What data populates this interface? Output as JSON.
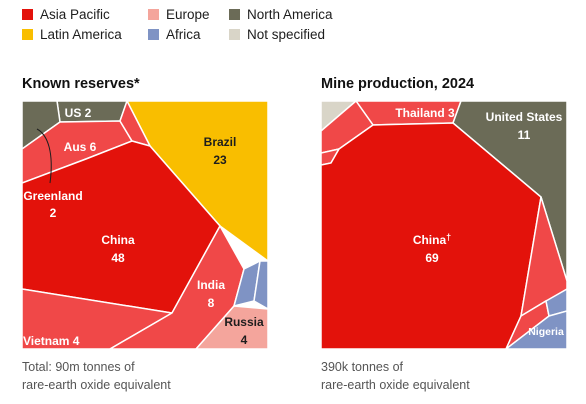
{
  "colors": {
    "asia_pacific": "#e3120b",
    "asia_pacific_light": "#f04848",
    "europe": "#f4a59c",
    "north_america": "#6b6b57",
    "latin_america": "#f9be00",
    "africa": "#7f93c4",
    "not_specified": "#d9d5c8"
  },
  "legend": [
    {
      "label": "Asia Pacific",
      "color": "#e3120b"
    },
    {
      "label": "Europe",
      "color": "#f4a59c"
    },
    {
      "label": "North America",
      "color": "#6b6b57"
    },
    {
      "label": "Latin America",
      "color": "#f9be00"
    },
    {
      "label": "Africa",
      "color": "#7f93c4"
    },
    {
      "label": "Not specified",
      "color": "#d9d5c8"
    }
  ],
  "chart_data": [
    {
      "type": "voronoi-treemap",
      "title": "Known reserves*",
      "note_line1": "Total: 90m tonnes of",
      "note_line2": "rare-earth oxide equivalent",
      "cells": [
        {
          "name": "China",
          "value": 48,
          "region": "Asia Pacific"
        },
        {
          "name": "Brazil",
          "value": 23,
          "region": "Latin America"
        },
        {
          "name": "India",
          "value": 8,
          "region": "Asia Pacific"
        },
        {
          "name": "Aus",
          "value": 6,
          "region": "Asia Pacific"
        },
        {
          "name": "Vietnam",
          "value": 4,
          "region": "Asia Pacific"
        },
        {
          "name": "Russia",
          "value": 4,
          "region": "Europe"
        },
        {
          "name": "Greenland",
          "value": 2,
          "region": "North America"
        },
        {
          "name": "US",
          "value": 2,
          "region": "North America"
        }
      ],
      "labels": {
        "us": "US 2",
        "aus": "Aus 6",
        "greenland": "Greenland",
        "greenland_value": "2",
        "china": "China",
        "china_value": "48",
        "brazil": "Brazil",
        "brazil_value": "23",
        "india": "India",
        "india_value": "8",
        "russia": "Russia",
        "russia_value": "4",
        "vietnam": "Vietnam 4"
      }
    },
    {
      "type": "voronoi-treemap",
      "title": "Mine production, 2024",
      "note_line1": "390k tonnes of",
      "note_line2": "rare-earth oxide equivalent",
      "cells": [
        {
          "name": "China†",
          "value": 69,
          "region": "Asia Pacific"
        },
        {
          "name": "United States",
          "value": 11,
          "region": "North America"
        },
        {
          "name": "Thailand",
          "value": 3,
          "region": "Asia Pacific"
        },
        {
          "name": "Nigeria",
          "value": null,
          "region": "Africa"
        }
      ],
      "labels": {
        "thailand": "Thailand 3",
        "us": "United States",
        "us_value": "11",
        "china": "China",
        "china_dagger": "†",
        "china_value": "69",
        "nigeria": "Nigeria"
      }
    }
  ]
}
